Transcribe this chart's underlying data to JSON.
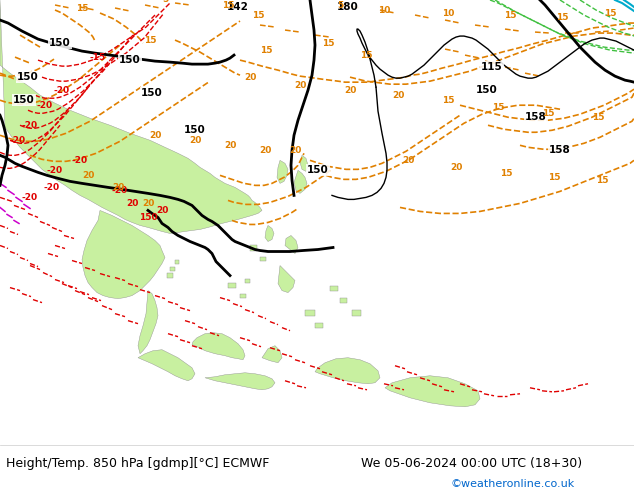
{
  "title_left": "Height/Temp. 850 hPa [gdmp][°C] ECMWF",
  "title_right": "We 05-06-2024 00:00 UTC (18+30)",
  "credit": "©weatheronline.co.uk",
  "credit_color": "#0066cc",
  "background_color": "#ffffff",
  "text_color": "#000000",
  "figwidth": 6.34,
  "figheight": 4.9,
  "dpi": 100,
  "land_color": "#c8f0a0",
  "sea_color": "#d8d8d8",
  "footer_fontsize": 9.0,
  "credit_fontsize": 8.0,
  "colors": {
    "black": "#000000",
    "orange": "#e08000",
    "red": "#e00000",
    "magenta": "#cc00cc",
    "green_line": "#40c040",
    "cyan": "#00aacc",
    "gray": "#909090"
  }
}
